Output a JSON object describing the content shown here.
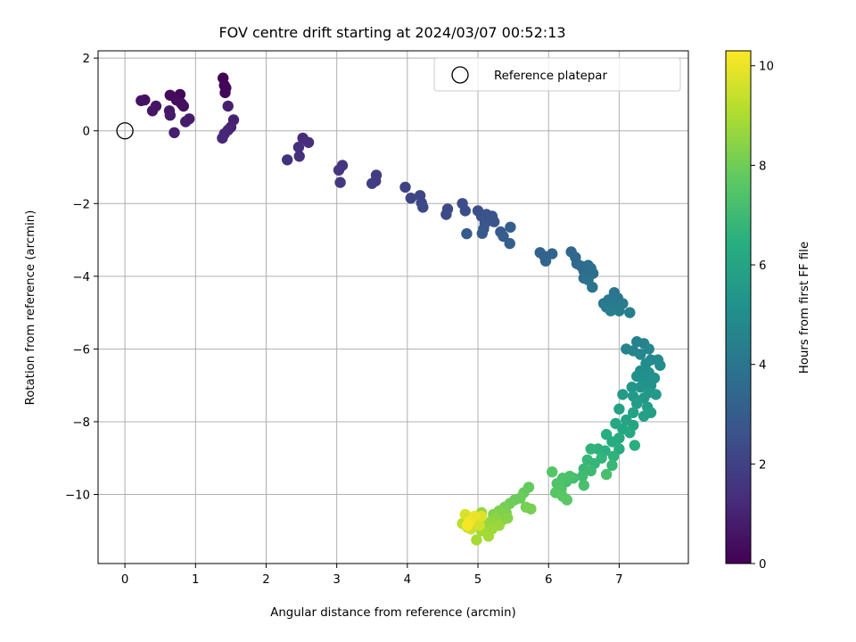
{
  "chart_data": {
    "type": "scatter",
    "title": "FOV centre drift starting at 2024/03/07 00:52:13",
    "xlabel": "Angular distance from reference (arcmin)",
    "ylabel": "Rotation from reference (arcmin)",
    "xlim": [
      -0.38,
      7.98
    ],
    "ylim": [
      -11.9,
      2.2
    ],
    "xticks": [
      0,
      1,
      2,
      3,
      4,
      5,
      6,
      7
    ],
    "yticks": [
      2,
      0,
      -2,
      -4,
      -6,
      -8,
      -10
    ],
    "grid": true,
    "legend": {
      "position": "top-right",
      "entries": [
        {
          "label": "Reference platepar",
          "marker": "open-circle"
        }
      ]
    },
    "reference_point": {
      "x": 0,
      "y": 0
    },
    "colorbar": {
      "label": "Hours from first FF file",
      "colormap": "viridis",
      "range": [
        0,
        10.3
      ],
      "ticks": [
        0,
        2,
        4,
        6,
        8,
        10
      ]
    },
    "points": [
      [
        1.39,
        1.45,
        0.0
      ],
      [
        1.41,
        1.25,
        0.05
      ],
      [
        1.43,
        1.18,
        0.1
      ],
      [
        1.42,
        1.05,
        0.15
      ],
      [
        0.78,
        1.0,
        0.2
      ],
      [
        0.64,
        0.98,
        0.25
      ],
      [
        0.73,
        0.85,
        0.3
      ],
      [
        0.8,
        0.75,
        0.35
      ],
      [
        0.83,
        0.68,
        0.4
      ],
      [
        0.28,
        0.85,
        0.45
      ],
      [
        0.23,
        0.83,
        0.5
      ],
      [
        0.44,
        0.68,
        0.55
      ],
      [
        0.39,
        0.55,
        0.6
      ],
      [
        0.63,
        0.55,
        0.65
      ],
      [
        0.64,
        0.43,
        0.7
      ],
      [
        0.91,
        0.33,
        0.75
      ],
      [
        0.86,
        0.25,
        0.8
      ],
      [
        0.7,
        -0.05,
        0.85
      ],
      [
        1.46,
        0.68,
        0.9
      ],
      [
        1.54,
        0.3,
        0.95
      ],
      [
        1.5,
        0.1,
        1.0
      ],
      [
        1.46,
        0.02,
        1.05
      ],
      [
        1.41,
        -0.08,
        1.1
      ],
      [
        1.38,
        -0.2,
        1.15
      ],
      [
        2.52,
        -0.2,
        1.25
      ],
      [
        2.6,
        -0.32,
        1.3
      ],
      [
        2.46,
        -0.45,
        1.35
      ],
      [
        2.47,
        -0.7,
        1.4
      ],
      [
        2.3,
        -0.8,
        1.45
      ],
      [
        3.08,
        -0.95,
        1.6
      ],
      [
        3.03,
        -1.08,
        1.65
      ],
      [
        3.05,
        -1.42,
        1.7
      ],
      [
        3.56,
        -1.22,
        1.8
      ],
      [
        3.55,
        -1.38,
        1.85
      ],
      [
        3.5,
        -1.45,
        1.9
      ],
      [
        3.97,
        -1.55,
        2.0
      ],
      [
        4.05,
        -1.85,
        2.1
      ],
      [
        4.18,
        -1.78,
        2.15
      ],
      [
        4.2,
        -1.98,
        2.2
      ],
      [
        4.22,
        -2.1,
        2.25
      ],
      [
        4.57,
        -2.15,
        2.3
      ],
      [
        4.55,
        -2.3,
        2.35
      ],
      [
        4.78,
        -2.0,
        2.4
      ],
      [
        4.82,
        -2.2,
        2.45
      ],
      [
        5.0,
        -2.2,
        2.5
      ],
      [
        5.05,
        -2.35,
        2.55
      ],
      [
        5.12,
        -2.3,
        2.6
      ],
      [
        5.2,
        -2.35,
        2.65
      ],
      [
        5.23,
        -2.5,
        2.7
      ],
      [
        5.1,
        -2.55,
        2.75
      ],
      [
        5.08,
        -2.7,
        2.8
      ],
      [
        5.06,
        -2.82,
        2.85
      ],
      [
        4.84,
        -2.83,
        2.9
      ],
      [
        5.32,
        -2.78,
        2.95
      ],
      [
        5.36,
        -2.9,
        3.0
      ],
      [
        5.46,
        -2.65,
        3.05
      ],
      [
        5.45,
        -3.1,
        3.1
      ],
      [
        5.88,
        -3.35,
        3.2
      ],
      [
        5.94,
        -3.45,
        3.25
      ],
      [
        5.96,
        -3.58,
        3.3
      ],
      [
        6.05,
        -3.38,
        3.35
      ],
      [
        6.32,
        -3.33,
        3.4
      ],
      [
        6.38,
        -3.48,
        3.45
      ],
      [
        6.4,
        -3.65,
        3.5
      ],
      [
        6.46,
        -3.72,
        3.55
      ],
      [
        6.5,
        -3.85,
        3.6
      ],
      [
        6.56,
        -3.7,
        3.65
      ],
      [
        6.6,
        -3.78,
        3.7
      ],
      [
        6.63,
        -3.92,
        3.75
      ],
      [
        6.5,
        -4.05,
        3.8
      ],
      [
        6.56,
        -4.1,
        3.85
      ],
      [
        6.62,
        -4.3,
        3.9
      ],
      [
        6.93,
        -4.45,
        3.95
      ],
      [
        6.98,
        -4.6,
        4.0
      ],
      [
        6.85,
        -4.65,
        4.05
      ],
      [
        6.78,
        -4.75,
        4.1
      ],
      [
        6.82,
        -4.85,
        4.15
      ],
      [
        6.92,
        -4.8,
        4.2
      ],
      [
        7.05,
        -4.75,
        4.25
      ],
      [
        7.0,
        -4.95,
        4.3
      ],
      [
        6.88,
        -4.95,
        4.35
      ],
      [
        7.15,
        -5.0,
        4.4
      ],
      [
        7.25,
        -5.8,
        4.5
      ],
      [
        7.35,
        -5.85,
        4.55
      ],
      [
        7.1,
        -6.0,
        4.6
      ],
      [
        7.2,
        -6.05,
        4.65
      ],
      [
        7.3,
        -6.15,
        4.7
      ],
      [
        7.42,
        -6.0,
        4.75
      ],
      [
        7.45,
        -6.3,
        4.8
      ],
      [
        7.55,
        -6.3,
        4.85
      ],
      [
        7.58,
        -6.45,
        4.9
      ],
      [
        7.38,
        -6.4,
        4.95
      ],
      [
        7.3,
        -6.6,
        5.0
      ],
      [
        7.42,
        -6.65,
        5.05
      ],
      [
        7.25,
        -6.75,
        5.1
      ],
      [
        7.35,
        -6.85,
        5.15
      ],
      [
        7.5,
        -6.8,
        5.2
      ],
      [
        7.45,
        -7.0,
        5.25
      ],
      [
        7.3,
        -7.05,
        5.3
      ],
      [
        7.18,
        -7.05,
        5.35
      ],
      [
        7.42,
        -7.2,
        5.4
      ],
      [
        7.35,
        -7.35,
        5.45
      ],
      [
        7.52,
        -7.25,
        5.5
      ],
      [
        7.2,
        -7.3,
        5.55
      ],
      [
        7.05,
        -7.25,
        5.6
      ],
      [
        7.25,
        -7.5,
        5.65
      ],
      [
        7.4,
        -7.6,
        5.7
      ],
      [
        7.45,
        -7.75,
        5.75
      ],
      [
        7.35,
        -7.85,
        5.8
      ],
      [
        7.2,
        -7.75,
        5.85
      ],
      [
        7.0,
        -7.65,
        5.9
      ],
      [
        7.1,
        -7.95,
        5.95
      ],
      [
        7.2,
        -8.1,
        6.0
      ],
      [
        7.05,
        -8.2,
        6.05
      ],
      [
        6.95,
        -8.05,
        6.1
      ],
      [
        7.15,
        -8.3,
        6.15
      ],
      [
        7.0,
        -8.45,
        6.2
      ],
      [
        6.9,
        -8.55,
        6.3
      ],
      [
        6.82,
        -8.35,
        6.35
      ],
      [
        7.0,
        -8.75,
        6.4
      ],
      [
        7.22,
        -8.65,
        6.45
      ],
      [
        6.8,
        -8.8,
        6.5
      ],
      [
        6.7,
        -8.75,
        6.55
      ],
      [
        6.92,
        -8.95,
        6.6
      ],
      [
        6.6,
        -8.75,
        6.65
      ],
      [
        6.75,
        -9.0,
        6.7
      ],
      [
        6.65,
        -9.15,
        6.75
      ],
      [
        6.55,
        -9.05,
        6.8
      ],
      [
        6.9,
        -9.2,
        6.85
      ],
      [
        6.5,
        -9.3,
        6.9
      ],
      [
        6.6,
        -9.35,
        6.95
      ],
      [
        6.48,
        -9.5,
        7.0
      ],
      [
        6.35,
        -9.55,
        7.1
      ],
      [
        6.25,
        -9.65,
        7.15
      ],
      [
        6.82,
        -9.45,
        7.2
      ],
      [
        6.5,
        -9.75,
        7.25
      ],
      [
        6.3,
        -9.5,
        7.3
      ],
      [
        6.2,
        -9.55,
        7.35
      ],
      [
        6.12,
        -9.7,
        7.4
      ],
      [
        6.18,
        -9.85,
        7.45
      ],
      [
        6.05,
        -9.38,
        7.5
      ],
      [
        6.1,
        -9.95,
        7.55
      ],
      [
        6.2,
        -10.05,
        7.6
      ],
      [
        6.26,
        -10.15,
        7.65
      ],
      [
        5.72,
        -9.8,
        7.8
      ],
      [
        5.65,
        -9.95,
        7.85
      ],
      [
        5.6,
        -10.1,
        7.9
      ],
      [
        5.52,
        -10.15,
        7.95
      ],
      [
        5.45,
        -10.25,
        8.0
      ],
      [
        5.38,
        -10.35,
        8.05
      ],
      [
        5.68,
        -10.35,
        8.1
      ],
      [
        5.75,
        -10.4,
        8.15
      ],
      [
        5.4,
        -10.5,
        8.2
      ],
      [
        5.3,
        -10.45,
        8.25
      ],
      [
        5.22,
        -10.55,
        8.3
      ],
      [
        5.35,
        -10.7,
        8.35
      ],
      [
        5.42,
        -10.65,
        8.4
      ],
      [
        5.25,
        -10.65,
        8.45
      ],
      [
        5.18,
        -10.75,
        8.55
      ],
      [
        5.05,
        -10.5,
        8.6
      ],
      [
        5.1,
        -10.85,
        8.65
      ],
      [
        5.3,
        -10.85,
        8.7
      ],
      [
        5.2,
        -10.95,
        8.75
      ],
      [
        5.05,
        -11.0,
        8.8
      ],
      [
        5.15,
        -11.15,
        8.85
      ],
      [
        4.98,
        -11.25,
        8.9
      ],
      [
        4.88,
        -10.65,
        9.0
      ],
      [
        4.85,
        -10.9,
        9.1
      ],
      [
        4.78,
        -10.8,
        9.2
      ],
      [
        4.95,
        -10.75,
        9.3
      ],
      [
        5.0,
        -10.7,
        9.4
      ],
      [
        4.9,
        -10.95,
        9.5
      ],
      [
        5.02,
        -10.85,
        9.6
      ],
      [
        4.82,
        -10.55,
        9.7
      ],
      [
        5.05,
        -10.6,
        9.8
      ],
      [
        4.95,
        -10.6,
        10.0
      ],
      [
        4.88,
        -10.75,
        10.1
      ],
      [
        4.85,
        -10.85,
        10.2
      ]
    ],
    "point_fields": [
      "x_arcmin",
      "y_arcmin",
      "hours"
    ]
  }
}
